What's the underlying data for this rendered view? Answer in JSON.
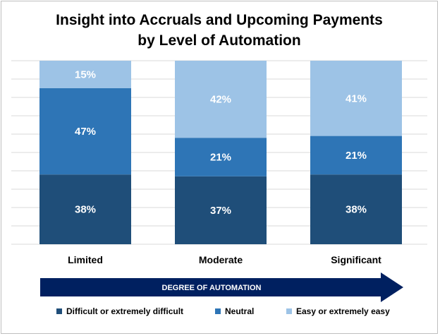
{
  "chart_data": {
    "type": "bar",
    "stacked": true,
    "normalized_percent": true,
    "title_lines": [
      "Insight into Accruals and Upcoming Payments",
      "by Level of Automation"
    ],
    "categories": [
      "Limited",
      "Moderate",
      "Significant"
    ],
    "series": [
      {
        "name": "Difficult or extremely difficult",
        "values": [
          38,
          37,
          38
        ],
        "labels": [
          "38%",
          "37%",
          "38%"
        ],
        "color": "#1f4e79"
      },
      {
        "name": "Neutral",
        "values": [
          47,
          21,
          21
        ],
        "labels": [
          "47%",
          "21%",
          "21%"
        ],
        "color": "#2e75b6"
      },
      {
        "name": "Easy or extremely easy",
        "values": [
          15,
          42,
          41
        ],
        "labels": [
          "15%",
          "42%",
          "41%"
        ],
        "color": "#9dc3e6"
      }
    ],
    "ylim": [
      0,
      100
    ],
    "grid": true,
    "legend_position": "bottom",
    "arrow_label": "DEGREE OF AUTOMATION",
    "arrow_color": "#002060"
  }
}
